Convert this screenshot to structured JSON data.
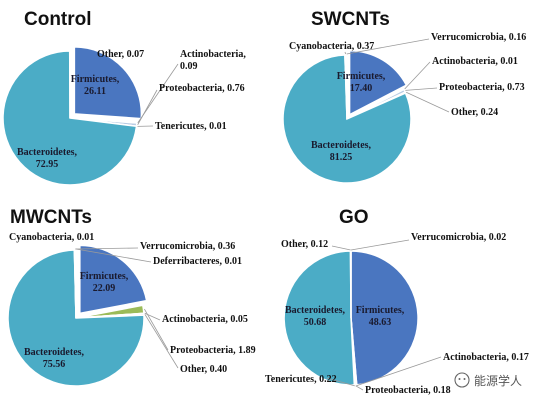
{
  "colors": {
    "bacteroidetes": "#4bacc6",
    "firmicutes": "#4a76c0",
    "other": "#b9cce4",
    "actinobacteria": "#e8e8e8",
    "proteobacteria": "#b9cce4",
    "tenericutes": "#d9d9d9",
    "cyanobacteria": "#9bbb59",
    "verrucomicrobia": "#dbe5f1",
    "deferribacteres": "#c3d69b"
  },
  "chart_data": [
    {
      "type": "pie",
      "title": "Control",
      "slices": [
        {
          "name": "Firmicutes",
          "value": 26.11,
          "color_key": "firmicutes",
          "label": "Firmicutes,",
          "label2": "26.11"
        },
        {
          "name": "Actinobacteria",
          "value": 0.09,
          "color_key": "actinobacteria",
          "label": "Actinobacteria,",
          "label2": "0.09"
        },
        {
          "name": "Proteobacteria",
          "value": 0.76,
          "color_key": "proteobacteria",
          "label": "Proteobacteria, 0.76"
        },
        {
          "name": "Tenericutes",
          "value": 0.01,
          "color_key": "tenericutes",
          "label": "Tenericutes, 0.01"
        },
        {
          "name": "Bacteroidetes",
          "value": 72.95,
          "color_key": "bacteroidetes",
          "label": "Bacteroidetes,",
          "label2": "72.95"
        },
        {
          "name": "Other",
          "value": 0.07,
          "color_key": "other",
          "label": "Other, 0.07"
        }
      ]
    },
    {
      "type": "pie",
      "title": "SWCNTs",
      "slices": [
        {
          "name": "Firmicutes",
          "value": 17.4,
          "color_key": "firmicutes",
          "label": "Firmicutes,",
          "label2": "17.40"
        },
        {
          "name": "Actinobacteria",
          "value": 0.01,
          "color_key": "actinobacteria",
          "label": "Actinobacteria, 0.01"
        },
        {
          "name": "Proteobacteria",
          "value": 0.73,
          "color_key": "proteobacteria",
          "label": "Proteobacteria, 0.73"
        },
        {
          "name": "Other",
          "value": 0.24,
          "color_key": "other",
          "label": "Other, 0.24"
        },
        {
          "name": "Bacteroidetes",
          "value": 81.25,
          "color_key": "bacteroidetes",
          "label": "Bacteroidetes,",
          "label2": "81.25"
        },
        {
          "name": "Cyanobacteria",
          "value": 0.37,
          "color_key": "cyanobacteria",
          "label": "Cyanobacteria, 0.37"
        },
        {
          "name": "Verrucomicrobia",
          "value": 0.16,
          "color_key": "verrucomicrobia",
          "label": "Verrucomicrobia, 0.16"
        }
      ]
    },
    {
      "type": "pie",
      "title": "MWCNTs",
      "slices": [
        {
          "name": "Firmicutes",
          "value": 22.09,
          "color_key": "firmicutes",
          "label": "Firmicutes,",
          "label2": "22.09"
        },
        {
          "name": "Proteobacteria",
          "value": 1.89,
          "color_key": "cyanobacteria",
          "label": "Proteobacteria, 1.89"
        },
        {
          "name": "Actinobacteria",
          "value": 0.05,
          "color_key": "actinobacteria",
          "label": "Actinobacteria, 0.05"
        },
        {
          "name": "Other",
          "value": 0.4,
          "color_key": "other",
          "label": "Other, 0.40"
        },
        {
          "name": "Bacteroidetes",
          "value": 75.56,
          "color_key": "bacteroidetes",
          "label": "Bacteroidetes,",
          "label2": "75.56"
        },
        {
          "name": "Cyanobacteria",
          "value": 0.01,
          "color_key": "cyanobacteria",
          "label": "Cyanobacteria, 0.01"
        },
        {
          "name": "Verrucomicrobia",
          "value": 0.36,
          "color_key": "verrucomicrobia",
          "label": "Verrucomicrobia, 0.36"
        },
        {
          "name": "Deferribacteres",
          "value": 0.01,
          "color_key": "deferribacteres",
          "label": "Deferribacteres, 0.01"
        }
      ]
    },
    {
      "type": "pie",
      "title": "GO",
      "slices": [
        {
          "name": "Verrucomicrobia",
          "value": 0.02,
          "color_key": "verrucomicrobia",
          "label": "Verrucomicrobia, 0.02"
        },
        {
          "name": "Firmicutes",
          "value": 48.63,
          "color_key": "firmicutes",
          "label": "Firmicutes,",
          "label2": "48.63"
        },
        {
          "name": "Actinobacteria",
          "value": 0.17,
          "color_key": "actinobacteria",
          "label": "Actinobacteria, 0.17"
        },
        {
          "name": "Proteobacteria",
          "value": 0.18,
          "color_key": "proteobacteria",
          "label": "Proteobacteria, 0.18"
        },
        {
          "name": "Tenericutes",
          "value": 0.22,
          "color_key": "tenericutes",
          "label": "Tenericutes, 0.22"
        },
        {
          "name": "Bacteroidetes",
          "value": 50.68,
          "color_key": "bacteroidetes",
          "label": "Bacteroidetes,",
          "label2": "50.68"
        },
        {
          "name": "Other",
          "value": 0.12,
          "color_key": "other",
          "label": "Other, 0.12"
        }
      ]
    }
  ],
  "watermark": {
    "icon": "wechat-icon",
    "text": "能源学人"
  }
}
